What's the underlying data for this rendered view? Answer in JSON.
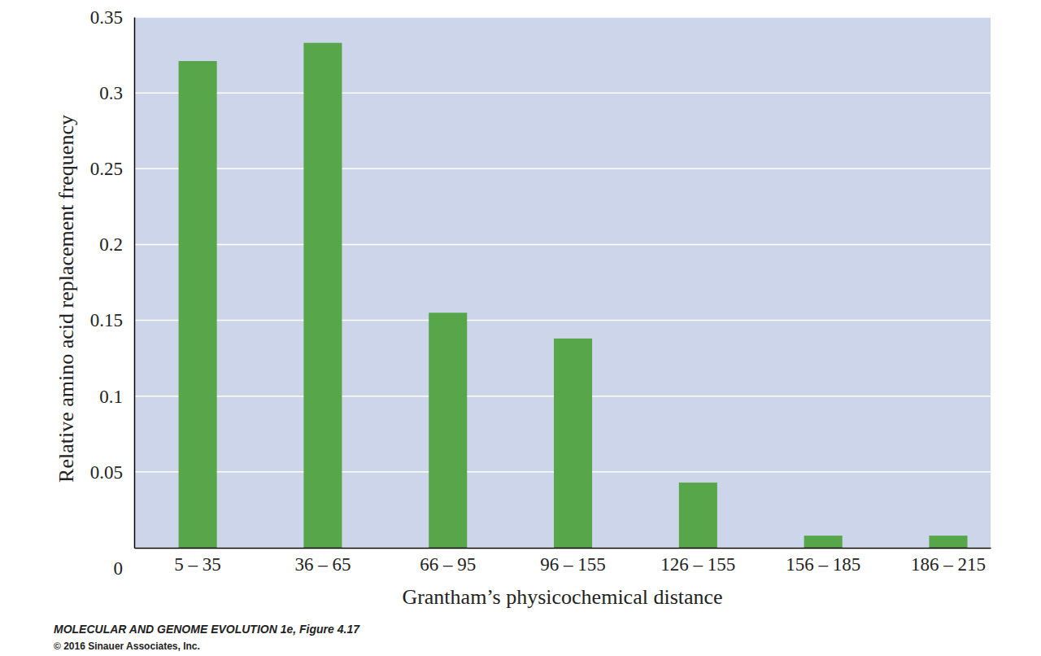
{
  "chart_data": {
    "type": "bar",
    "x_label": "Grantham’s physicochemical distance",
    "y_label": "Relative amino acid replacement frequency",
    "categories": [
      "5 – 35",
      "36 – 65",
      "66 – 95",
      "96 – 155",
      "126 – 155",
      "156 – 185",
      "186 – 215"
    ],
    "values": [
      0.321,
      0.333,
      0.155,
      0.138,
      0.043,
      0.008,
      0.008
    ],
    "color": "#58a64a",
    "ylim": [
      0,
      0.35
    ],
    "yticks": [
      0,
      0.05,
      0.1,
      0.15,
      0.2,
      0.25,
      0.3,
      0.35
    ],
    "grid": true,
    "annotations": [
      "MOLECULAR AND GENOME EVOLUTION 1e, Figure 4.17",
      "© 2016 Sinauer Associates, Inc."
    ]
  }
}
